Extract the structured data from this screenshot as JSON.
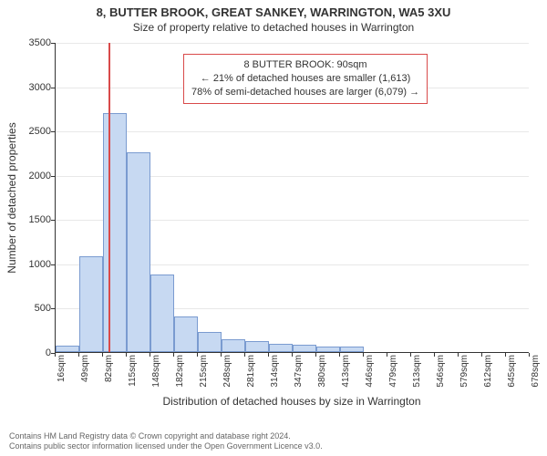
{
  "title_main": "8, BUTTER BROOK, GREAT SANKEY, WARRINGTON, WA5 3XU",
  "title_sub": "Size of property relative to detached houses in Warrington",
  "chart": {
    "type": "histogram",
    "background_color": "#ffffff",
    "grid_color": "#e8e8e8",
    "axis_color": "#333333",
    "text_color": "#333333",
    "y": {
      "label": "Number of detached properties",
      "min": 0,
      "max": 3500,
      "tick_step": 500,
      "ticks": [
        0,
        500,
        1000,
        1500,
        2000,
        2500,
        3000,
        3500
      ],
      "label_fontsize": 12,
      "tick_fontsize": 11
    },
    "x": {
      "label": "Distribution of detached houses by size in Warrington",
      "unit": "sqm",
      "ticks": [
        16,
        49,
        82,
        115,
        148,
        182,
        215,
        248,
        281,
        314,
        347,
        380,
        413,
        446,
        479,
        513,
        546,
        579,
        612,
        645,
        678
      ],
      "label_fontsize": 12,
      "tick_fontsize": 10
    },
    "bars": {
      "fill": "#c7d9f2",
      "stroke": "#7a9bd0",
      "stroke_width": 1,
      "values": [
        70,
        1080,
        2700,
        2250,
        880,
        400,
        230,
        140,
        120,
        90,
        80,
        60,
        60,
        0,
        0,
        0,
        0,
        0,
        0,
        0
      ]
    },
    "marker": {
      "value_sqm": 90,
      "color": "#d94a4a",
      "width": 2
    },
    "info_box": {
      "border_color": "#d94a4a",
      "bg": "#ffffff",
      "line1": "8 BUTTER BROOK: 90sqm",
      "line2": "← 21% of detached houses are smaller (1,613)",
      "line3": "78% of semi-detached houses are larger (6,079) →",
      "fontsize": 11
    }
  },
  "footer": {
    "line1": "Contains HM Land Registry data © Crown copyright and database right 2024.",
    "line2": "Contains public sector information licensed under the Open Government Licence v3.0.",
    "color": "#666666",
    "fontsize": 9
  }
}
